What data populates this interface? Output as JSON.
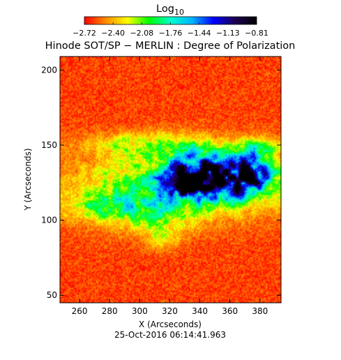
{
  "colorbar": {
    "label_main": "Log",
    "label_sub": "10",
    "ticks": [
      "-2.72",
      "-2.40",
      "-2.08",
      "-1.76",
      "-1.44",
      "-1.13",
      "-0.81"
    ],
    "range": [
      -2.72,
      -0.81
    ],
    "colormap": [
      "#ff0000",
      "#ff8c00",
      "#ffff00",
      "#00ff00",
      "#00ffcc",
      "#00b4ff",
      "#0000ff",
      "#1e0050",
      "#000000"
    ]
  },
  "chart_data": {
    "type": "heatmap",
    "title": "Hinode SOT/SP − MERLIN : Degree of Polarization",
    "xlabel": "X (Arcseconds)",
    "ylabel": "Y (Arcseconds)",
    "xlim": [
      247,
      394
    ],
    "ylim": [
      45,
      209
    ],
    "xticks": [
      260,
      280,
      300,
      320,
      340,
      360,
      380
    ],
    "yticks": [
      50,
      100,
      150,
      200
    ],
    "value_label": "Log10 Degree of Polarization",
    "value_range": [
      -2.72,
      -0.81
    ],
    "background_level": -2.62,
    "features": [
      {
        "description": "diffuse active region",
        "x": 335,
        "y": 126,
        "sx": 52,
        "sy": 14,
        "strength": 0.9
      },
      {
        "description": "strong polarization core",
        "x": 332,
        "y": 126,
        "sx": 12,
        "sy": 7,
        "strength": 1.6
      },
      {
        "description": "strong polarization core",
        "x": 356,
        "y": 126,
        "sx": 15,
        "sy": 9,
        "strength": 1.4
      },
      {
        "description": "strong polarization core",
        "x": 375,
        "y": 133,
        "sx": 9,
        "sy": 9,
        "strength": 1.1
      },
      {
        "description": "plage extension",
        "x": 305,
        "y": 107,
        "sx": 27,
        "sy": 10,
        "strength": 0.6
      },
      {
        "description": "plage extension",
        "x": 270,
        "y": 108,
        "sx": 18,
        "sy": 6,
        "strength": 0.4
      },
      {
        "description": "plage arm",
        "x": 302,
        "y": 150,
        "sx": 25,
        "sy": 6,
        "strength": 0.5
      },
      {
        "description": "plage arm",
        "x": 340,
        "y": 142,
        "sx": 15,
        "sy": 7,
        "strength": 0.8
      },
      {
        "description": "plage arm",
        "x": 380,
        "y": 148,
        "sx": 10,
        "sy": 5,
        "strength": 0.5
      },
      {
        "description": "plage tail",
        "x": 315,
        "y": 90,
        "sx": 8,
        "sy": 7,
        "strength": 0.4
      }
    ]
  },
  "timestamp": "25-Oct-2016 06:14:41.963"
}
